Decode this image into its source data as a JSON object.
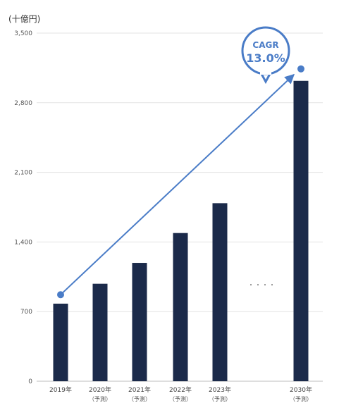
{
  "unit_label": "(十億円)",
  "colors": {
    "bar": "#1b2a4a",
    "trend": "#4a7cc7",
    "grid": "#e3e3e3"
  },
  "annotation": {
    "line1": "CAGR",
    "line2": "13.0%"
  },
  "ellipsis": "・・・・",
  "chart_data": {
    "type": "bar",
    "title": "",
    "xlabel": "",
    "ylabel": "(十億円)",
    "ylim": [
      0,
      3500
    ],
    "yticks": [
      "0",
      "700",
      "1,400",
      "2,100",
      "2,800",
      "3,500"
    ],
    "grid": true,
    "categories": [
      {
        "label": "2019年",
        "sub": ""
      },
      {
        "label": "2020年",
        "sub": "（予測）"
      },
      {
        "label": "2021年",
        "sub": "（予測）"
      },
      {
        "label": "2022年",
        "sub": "（予測）"
      },
      {
        "label": "2023年",
        "sub": "（予測）"
      },
      {
        "label": "2030年",
        "sub": "（予測）"
      }
    ],
    "values": [
      780,
      980,
      1190,
      1490,
      1790,
      3020
    ],
    "trend_line": {
      "from_category": "2019年",
      "from_value": 870,
      "to_category": "2030年",
      "to_value": 3140
    }
  }
}
